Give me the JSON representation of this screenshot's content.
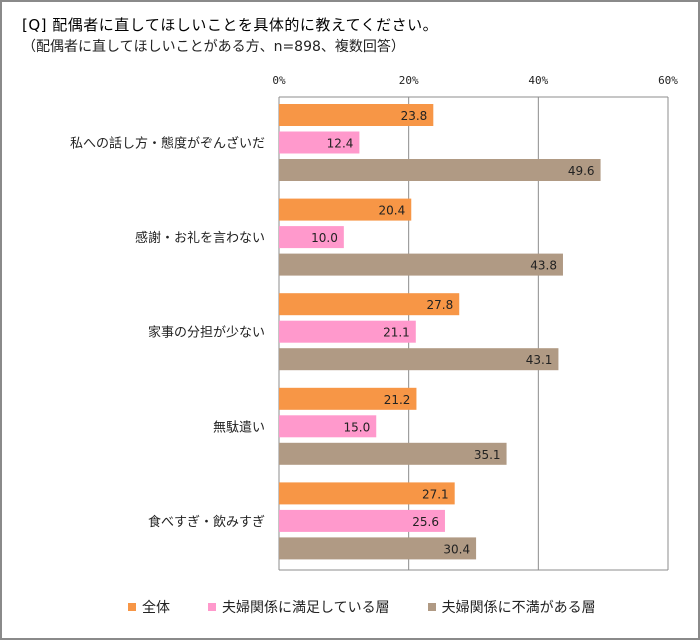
{
  "chart_data": {
    "type": "bar",
    "orientation": "horizontal",
    "title": "[Q] 配偶者に直してほしいことを具体的に教えてください。",
    "subtitle": "（配偶者に直してほしいことがある方、n=898、複数回答）",
    "categories": [
      "私への話し方・態度がぞんざいだ",
      "感謝・お礼を言わない",
      "家事の分担が少ない",
      "無駄遣い",
      "食べすぎ・飲みすぎ"
    ],
    "series": [
      {
        "name": "全体",
        "color": "#F79646",
        "values": [
          23.8,
          20.4,
          27.8,
          21.2,
          27.1
        ]
      },
      {
        "name": "夫婦関係に満足している層",
        "color": "#FF99CC",
        "values": [
          12.4,
          10.0,
          21.1,
          15.0,
          25.6
        ]
      },
      {
        "name": "夫婦関係に不満がある層",
        "color": "#B09A84",
        "values": [
          49.6,
          43.8,
          43.1,
          35.1,
          30.4
        ]
      }
    ],
    "xlim": [
      0,
      60
    ],
    "xticks": [
      "0%",
      "20%",
      "40%",
      "60%"
    ],
    "grid": true,
    "legend": "bottom"
  }
}
